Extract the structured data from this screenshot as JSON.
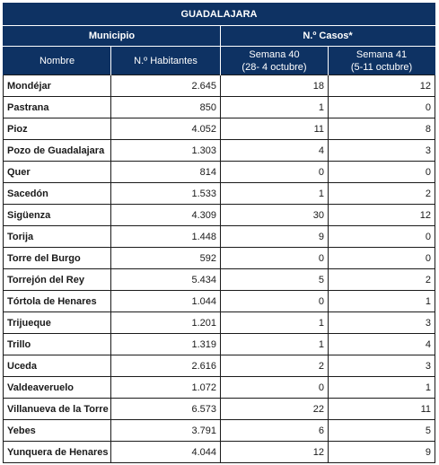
{
  "table": {
    "title": "GUADALAJARA",
    "group_headers": {
      "municipio": "Municipio",
      "casos": "N.º Casos*"
    },
    "columns": {
      "nombre": "Nombre",
      "habitantes": "N.º Habitantes",
      "semana40_line1": "Semana 40",
      "semana40_line2": "(28- 4 octubre)",
      "semana41_line1": "Semana 41",
      "semana41_line2": "(5-11 octubre)"
    },
    "rows": [
      {
        "nombre": "Mondéjar",
        "habitantes": "2.645",
        "s40": "18",
        "s41": "12"
      },
      {
        "nombre": "Pastrana",
        "habitantes": "850",
        "s40": "1",
        "s41": "0"
      },
      {
        "nombre": "Pioz",
        "habitantes": "4.052",
        "s40": "11",
        "s41": "8"
      },
      {
        "nombre": "Pozo de Guadalajara",
        "habitantes": "1.303",
        "s40": "4",
        "s41": "3"
      },
      {
        "nombre": "Quer",
        "habitantes": "814",
        "s40": "0",
        "s41": "0"
      },
      {
        "nombre": "Sacedón",
        "habitantes": "1.533",
        "s40": "1",
        "s41": "2"
      },
      {
        "nombre": "Sigüenza",
        "habitantes": "4.309",
        "s40": "30",
        "s41": "12"
      },
      {
        "nombre": "Torija",
        "habitantes": "1.448",
        "s40": "9",
        "s41": "0"
      },
      {
        "nombre": "Torre del Burgo",
        "habitantes": "592",
        "s40": "0",
        "s41": "0"
      },
      {
        "nombre": "Torrejón del Rey",
        "habitantes": "5.434",
        "s40": "5",
        "s41": "2"
      },
      {
        "nombre": "Tórtola de Henares",
        "habitantes": "1.044",
        "s40": "0",
        "s41": "1"
      },
      {
        "nombre": "Trijueque",
        "habitantes": "1.201",
        "s40": "1",
        "s41": "3"
      },
      {
        "nombre": "Trillo",
        "habitantes": "1.319",
        "s40": "1",
        "s41": "4"
      },
      {
        "nombre": "Uceda",
        "habitantes": "2.616",
        "s40": "2",
        "s41": "3"
      },
      {
        "nombre": "Valdeaveruelo",
        "habitantes": "1.072",
        "s40": "0",
        "s41": "1"
      },
      {
        "nombre": "Villanueva de la Torre",
        "habitantes": "6.573",
        "s40": "22",
        "s41": "11"
      },
      {
        "nombre": "Yebes",
        "habitantes": "3.791",
        "s40": "6",
        "s41": "5"
      },
      {
        "nombre": "Yunquera de Henares",
        "habitantes": "4.044",
        "s40": "12",
        "s41": "9"
      }
    ]
  },
  "colors": {
    "header_bg": "#0e3263",
    "header_text": "#ffffff",
    "border": "#1a1a1a"
  }
}
